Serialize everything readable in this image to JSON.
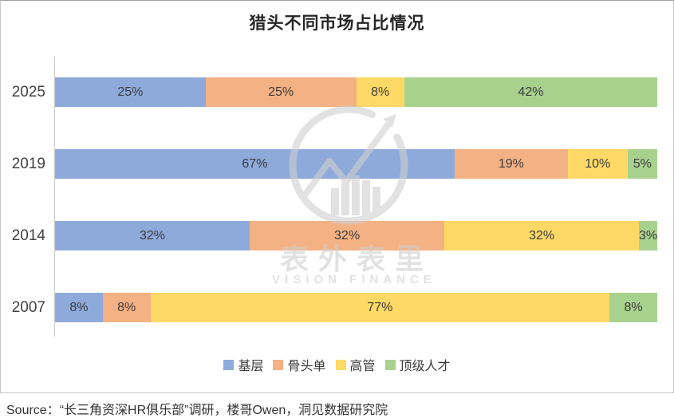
{
  "title": "猎头不同市场占比情况",
  "source_line": "Source：“长三角资深HR俱乐部”调研，楼哥Owen，洞见数据研究院",
  "watermark": {
    "cn": "表外表里",
    "en": "VISION FINANCE"
  },
  "colors": {
    "blue": "#8EAADB",
    "orange": "#F4B183",
    "yellow": "#FFD966",
    "green": "#A9D18E",
    "axis_line": "#c9c9c9",
    "frame_border": "#c6c6c6"
  },
  "chart_data": {
    "type": "bar",
    "variant": "horizontal-100pct-stacked",
    "title": "猎头不同市场占比情况",
    "categories": [
      "2025",
      "2019",
      "2014",
      "2007"
    ],
    "series": [
      {
        "name": "基层",
        "color": "#8EAADB",
        "values": [
          25,
          67,
          32,
          8
        ]
      },
      {
        "name": "骨头单",
        "color": "#F4B183",
        "values": [
          25,
          19,
          32,
          8
        ]
      },
      {
        "name": "高管",
        "color": "#FFD966",
        "values": [
          8,
          10,
          32,
          77
        ]
      },
      {
        "name": "顶级人才",
        "color": "#A9D18E",
        "values": [
          42,
          5,
          3,
          8
        ]
      }
    ],
    "value_suffix": "%",
    "xlabel": "",
    "ylabel": "",
    "legend_position": "bottom",
    "gridlines": false,
    "axis_baseline_visible": true
  }
}
